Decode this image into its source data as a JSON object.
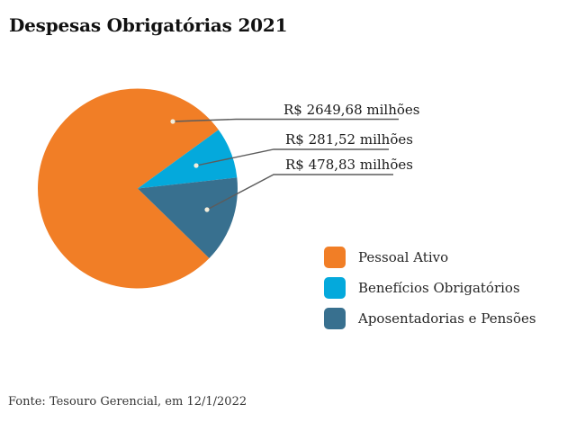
{
  "title": "Despesas Obrigatórias 2021",
  "source": "Fonte: Tesouro Gerencial, em 12/1/2022",
  "styles": {
    "background": "#FFFFFF",
    "text": "#1A1A1A",
    "callout_dot": "#F3EEDC",
    "callout_line": "#5C5C5C"
  },
  "chart_data": {
    "type": "pie",
    "title": "Despesas Obrigatórias 2021",
    "unit": "R$ milhões",
    "legend_position": "bottom-right",
    "labels_style": "callout-lines-with-dots",
    "slices": [
      {
        "label": "Pessoal Ativo",
        "value": 2649.68,
        "value_label": "R$ 2649,68 milhões",
        "color": "#F17E26"
      },
      {
        "label": "Benefícios Obrigatórios",
        "value": 281.52,
        "value_label": "R$ 281,52 milhões",
        "color": "#04A9DC"
      },
      {
        "label": "Aposentadorias e Pensões",
        "value": 478.83,
        "value_label": "R$ 478,83 milhões",
        "color": "#38708F"
      }
    ]
  }
}
